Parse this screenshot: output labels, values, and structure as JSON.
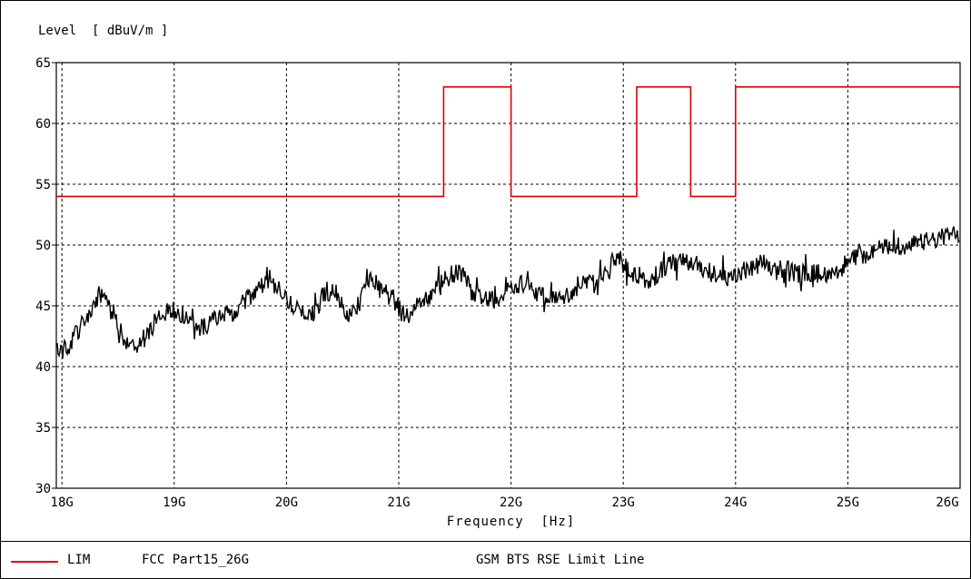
{
  "chart_data": {
    "type": "line",
    "ylabel": "Level  [ dBuV/m ]",
    "xlabel": "Frequency  [Hz]",
    "ylim": [
      30,
      65
    ],
    "yticks": [
      "30",
      "35",
      "40",
      "45",
      "50",
      "55",
      "60",
      "65"
    ],
    "xlim": [
      17.95,
      26.0
    ],
    "xticks": [
      {
        "value": 18,
        "label": "18G"
      },
      {
        "value": 19,
        "label": "19G"
      },
      {
        "value": 20,
        "label": "20G"
      },
      {
        "value": 21,
        "label": "21G"
      },
      {
        "value": 22,
        "label": "22G"
      },
      {
        "value": 23,
        "label": "23G"
      },
      {
        "value": 24,
        "label": "24G"
      },
      {
        "value": 25,
        "label": "25G"
      },
      {
        "value": 26,
        "label": "26G"
      }
    ],
    "grid": true,
    "limit_line": {
      "name": "LIM",
      "source": "FCC Part15_26G",
      "description": "GSM BTS RSE Limit Line",
      "color": "#e00000",
      "points": [
        [
          17.95,
          54
        ],
        [
          21.4,
          54
        ],
        [
          21.4,
          63
        ],
        [
          22.0,
          63
        ],
        [
          22.0,
          54
        ],
        [
          23.12,
          54
        ],
        [
          23.12,
          63
        ],
        [
          23.6,
          63
        ],
        [
          23.6,
          54
        ],
        [
          24.0,
          54
        ],
        [
          24.0,
          63
        ],
        [
          26.0,
          63
        ]
      ]
    },
    "trace": {
      "color": "#000000",
      "x": [
        17.95,
        18.05,
        18.15,
        18.25,
        18.35,
        18.45,
        18.55,
        18.65,
        18.75,
        18.85,
        18.95,
        19.05,
        19.15,
        19.25,
        19.35,
        19.45,
        19.55,
        19.65,
        19.75,
        19.85,
        19.95,
        20.05,
        20.15,
        20.25,
        20.35,
        20.45,
        20.55,
        20.65,
        20.75,
        20.85,
        20.95,
        21.05,
        21.15,
        21.25,
        21.35,
        21.45,
        21.55,
        21.65,
        21.75,
        21.85,
        21.95,
        22.05,
        22.15,
        22.25,
        22.35,
        22.45,
        22.55,
        22.65,
        22.75,
        22.85,
        22.95,
        23.05,
        23.15,
        23.25,
        23.35,
        23.45,
        23.55,
        23.65,
        23.75,
        23.85,
        23.95,
        24.05,
        24.15,
        24.25,
        24.35,
        24.45,
        24.55,
        24.65,
        24.75,
        24.85,
        24.95,
        25.05,
        25.15,
        25.25,
        25.35,
        25.45,
        25.55,
        25.65,
        25.75,
        25.85,
        25.95
      ],
      "y": [
        41.2,
        41.5,
        43.0,
        44.5,
        45.8,
        44.5,
        42.5,
        41.5,
        42.5,
        44.0,
        44.8,
        44.5,
        43.5,
        43.2,
        43.8,
        44.2,
        44.6,
        45.5,
        46.5,
        47.2,
        46.0,
        45.0,
        44.2,
        44.5,
        46.2,
        46.0,
        44.0,
        45.2,
        47.5,
        46.5,
        45.5,
        44.2,
        44.5,
        45.5,
        46.5,
        47.5,
        47.8,
        46.2,
        45.8,
        45.5,
        46.0,
        46.8,
        46.8,
        46.0,
        45.5,
        45.5,
        46.2,
        46.8,
        47.0,
        48.0,
        49.0,
        47.8,
        47.0,
        47.2,
        48.0,
        48.5,
        48.6,
        48.4,
        48.0,
        47.5,
        47.0,
        47.8,
        48.0,
        48.6,
        47.8,
        48.2,
        47.6,
        47.8,
        47.6,
        47.8,
        48.2,
        49.0,
        49.2,
        49.6,
        49.8,
        50.0,
        49.8,
        50.2,
        50.4,
        50.6,
        51.0
      ]
    }
  }
}
